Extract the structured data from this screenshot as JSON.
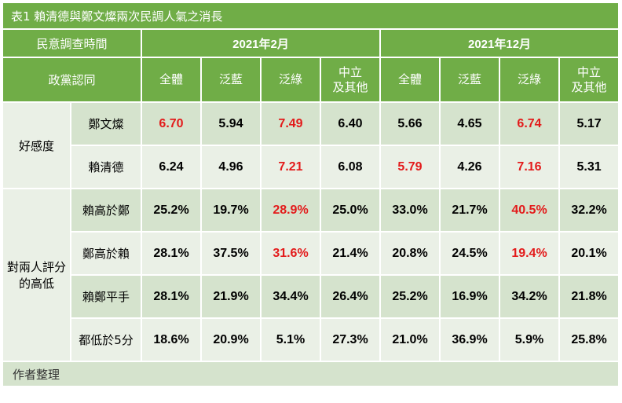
{
  "title": "表1 賴清德與鄭文燦兩次民調人氣之消長",
  "header": {
    "survey_time_label": "民意調查時間",
    "periods": [
      "2021年2月",
      "2021年12月"
    ],
    "party_label": "政黨認同",
    "columns": [
      "全體",
      "泛藍",
      "泛綠",
      "中立\n及其他",
      "全體",
      "泛藍",
      "泛綠",
      "中立\n及其他"
    ]
  },
  "groups": [
    {
      "label": "好感度",
      "rows": [
        {
          "label": "鄭文燦",
          "values": [
            "6.70",
            "5.94",
            "7.49",
            "6.40",
            "5.66",
            "4.65",
            "6.74",
            "5.17"
          ],
          "highlight": [
            true,
            false,
            true,
            false,
            false,
            false,
            true,
            false
          ]
        },
        {
          "label": "賴清德",
          "values": [
            "6.24",
            "4.96",
            "7.21",
            "6.08",
            "5.79",
            "4.26",
            "7.16",
            "5.31"
          ],
          "highlight": [
            false,
            false,
            true,
            false,
            true,
            false,
            true,
            false
          ]
        }
      ]
    },
    {
      "label": "對兩人評分\n的高低",
      "rows": [
        {
          "label": "賴高於鄭",
          "values": [
            "25.2%",
            "19.7%",
            "28.9%",
            "25.0%",
            "33.0%",
            "21.7%",
            "40.5%",
            "32.2%"
          ],
          "highlight": [
            false,
            false,
            true,
            false,
            false,
            false,
            true,
            false
          ]
        },
        {
          "label": "鄭高於賴",
          "values": [
            "28.1%",
            "37.5%",
            "31.6%",
            "21.4%",
            "20.8%",
            "24.5%",
            "19.4%",
            "20.1%"
          ],
          "highlight": [
            false,
            false,
            true,
            false,
            false,
            false,
            true,
            false
          ]
        },
        {
          "label": "賴鄭平手",
          "values": [
            "28.1%",
            "21.9%",
            "34.4%",
            "26.4%",
            "25.2%",
            "16.9%",
            "34.2%",
            "21.8%"
          ],
          "highlight": [
            false,
            false,
            false,
            false,
            false,
            false,
            false,
            false
          ]
        },
        {
          "label": "都低於5分",
          "values": [
            "18.6%",
            "20.9%",
            "5.1%",
            "27.3%",
            "21.0%",
            "36.9%",
            "5.9%",
            "25.8%"
          ],
          "highlight": [
            false,
            false,
            false,
            false,
            false,
            false,
            false,
            false
          ]
        }
      ]
    }
  ],
  "footer": "作者整理",
  "colors": {
    "header_green": "#70ad47",
    "band_dark": "#d5e3cd",
    "band_light": "#eaf0e6",
    "highlight_red": "#e31b1b"
  }
}
